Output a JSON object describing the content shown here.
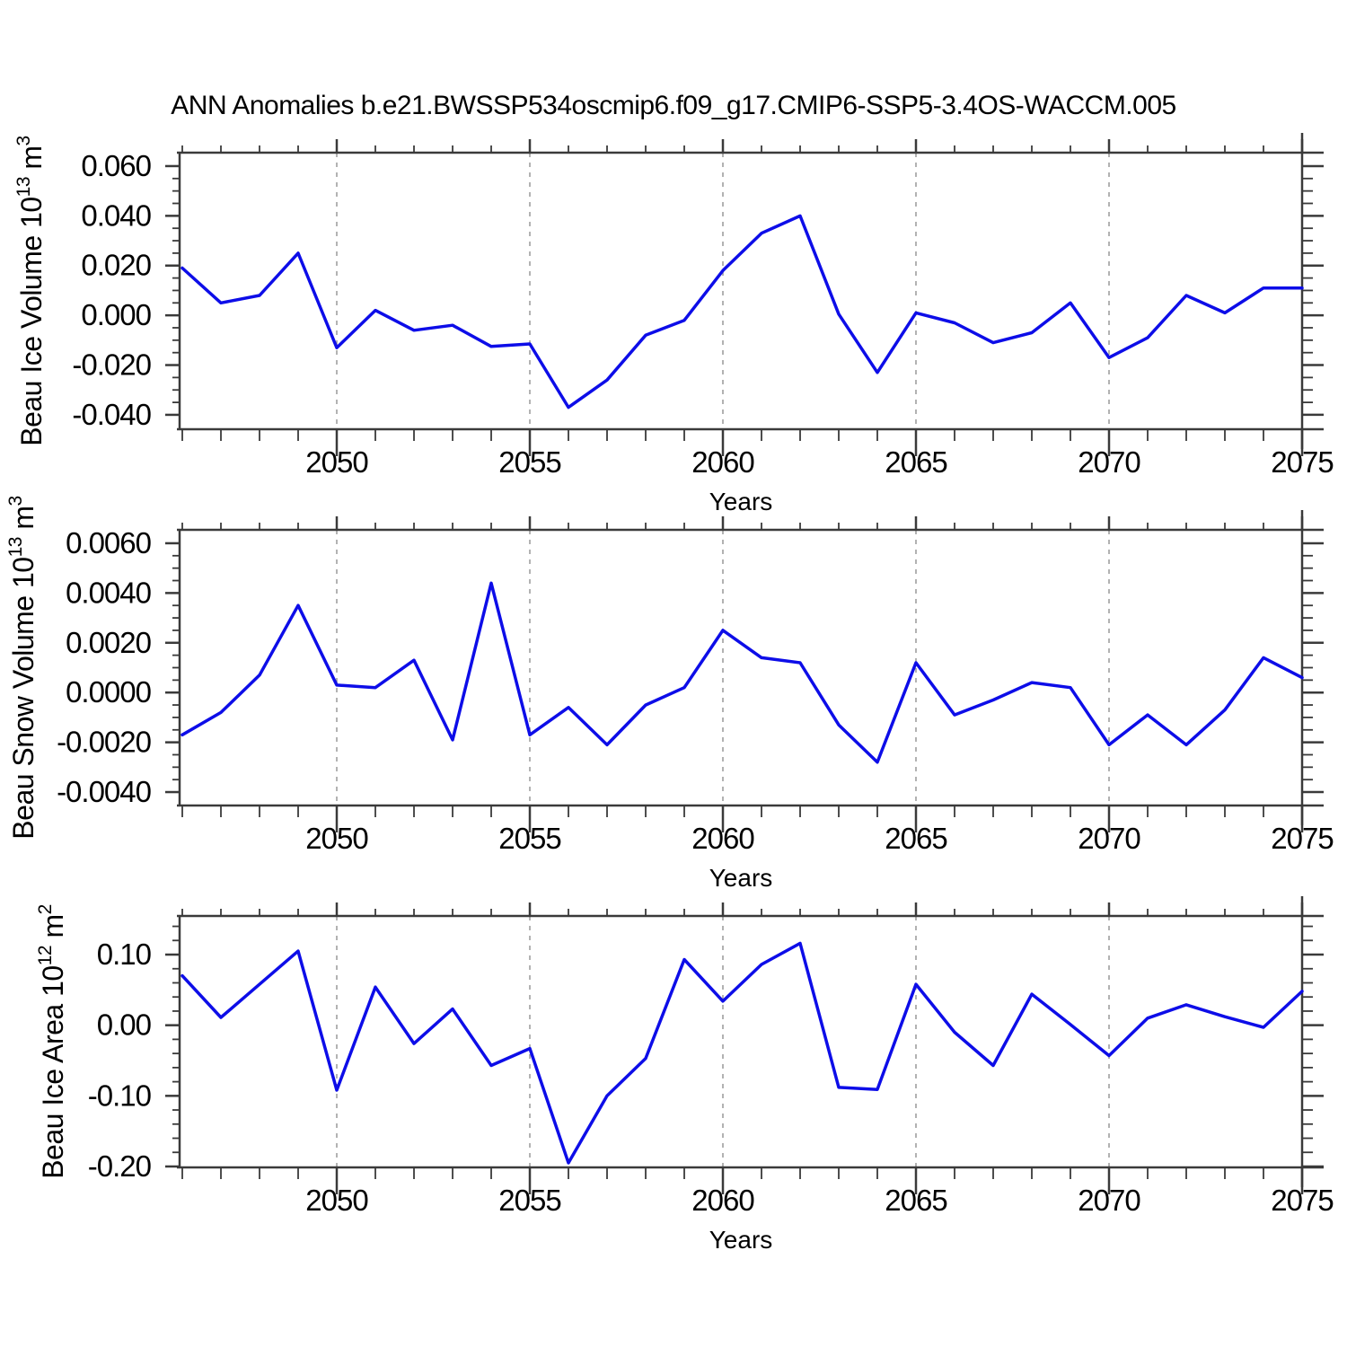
{
  "title": "ANN Anomalies b.e21.BWSSP534oscmip6.f09_g17.CMIP6-SSP5-3.4OS-WACCM.005",
  "colors": {
    "series_line": "#0D0DE8",
    "axis": "#3a3a3a",
    "grid_dashed": "#999999",
    "text": "#000000",
    "background": "#ffffff"
  },
  "chart_data": [
    {
      "type": "line",
      "panel": 1,
      "ylabel": "Beau Ice Volume 10^13 m^3",
      "xlabel": "Years",
      "x": [
        2046,
        2047,
        2048,
        2049,
        2050,
        2051,
        2052,
        2053,
        2054,
        2055,
        2056,
        2057,
        2058,
        2059,
        2060,
        2061,
        2062,
        2063,
        2064,
        2065,
        2066,
        2067,
        2068,
        2069,
        2070,
        2071,
        2072,
        2073,
        2074,
        2075
      ],
      "values": [
        0.019,
        0.005,
        0.008,
        0.025,
        -0.013,
        0.002,
        -0.006,
        -0.004,
        -0.0125,
        -0.0115,
        -0.037,
        -0.026,
        -0.008,
        -0.002,
        0.018,
        0.033,
        0.04,
        0.0005,
        -0.023,
        0.001,
        -0.003,
        -0.011,
        -0.007,
        0.005,
        -0.017,
        -0.009,
        0.008,
        0.001,
        0.011,
        0.011
      ],
      "ylim": [
        -0.0458,
        0.0654
      ],
      "yticks": [
        0.06,
        0.04,
        0.02,
        0.0,
        -0.02,
        -0.04
      ],
      "ytick_labels": [
        "0.060",
        "0.040",
        "0.020",
        "0.000",
        "-0.020",
        "-0.040"
      ],
      "y_minor_step": 0.005,
      "xlim": [
        2045.93,
        2075
      ],
      "xticks": [
        2050,
        2055,
        2060,
        2065,
        2070,
        2075
      ],
      "xtick_labels": [
        "2050",
        "2055",
        "2060",
        "2065",
        "2070",
        "2075"
      ],
      "x_minor_step": 1,
      "grid_years": [
        2050,
        2055,
        2060,
        2065,
        2070
      ],
      "grid": "vertical-dashed",
      "legend": "none"
    },
    {
      "type": "line",
      "panel": 2,
      "ylabel": "Beau Snow Volume 10^13 m^3",
      "xlabel": "Years",
      "x": [
        2046,
        2047,
        2048,
        2049,
        2050,
        2051,
        2052,
        2053,
        2054,
        2055,
        2056,
        2057,
        2058,
        2059,
        2060,
        2061,
        2062,
        2063,
        2064,
        2065,
        2066,
        2067,
        2068,
        2069,
        2070,
        2071,
        2072,
        2073,
        2074,
        2075
      ],
      "values": [
        -0.0017,
        -0.0008,
        0.0007,
        0.0035,
        0.0003,
        0.0002,
        0.0013,
        -0.0019,
        0.0044,
        -0.0017,
        -0.0006,
        -0.0021,
        -0.0005,
        0.0002,
        0.0025,
        0.0014,
        0.0012,
        -0.0013,
        -0.0028,
        0.0012,
        -0.0009,
        -0.0003,
        0.0004,
        0.0002,
        -0.0021,
        -0.0009,
        -0.0021,
        -0.0007,
        0.0014,
        0.0006
      ],
      "ylim": [
        -0.00454,
        0.00654
      ],
      "yticks": [
        0.006,
        0.004,
        0.002,
        0.0,
        -0.002,
        -0.004
      ],
      "ytick_labels": [
        "0.0060",
        "0.0040",
        "0.0020",
        "0.0000",
        "-0.0020",
        "-0.0040"
      ],
      "y_minor_step": 0.0005,
      "xlim": [
        2045.93,
        2075
      ],
      "xticks": [
        2050,
        2055,
        2060,
        2065,
        2070,
        2075
      ],
      "xtick_labels": [
        "2050",
        "2055",
        "2060",
        "2065",
        "2070",
        "2075"
      ],
      "x_minor_step": 1,
      "grid_years": [
        2050,
        2055,
        2060,
        2065,
        2070
      ],
      "grid": "vertical-dashed",
      "legend": "none"
    },
    {
      "type": "line",
      "panel": 3,
      "ylabel": "Beau Ice Area 10^12 m^2",
      "xlabel": "Years",
      "x": [
        2046,
        2047,
        2048,
        2049,
        2050,
        2051,
        2052,
        2053,
        2054,
        2055,
        2056,
        2057,
        2058,
        2059,
        2060,
        2061,
        2062,
        2063,
        2064,
        2065,
        2066,
        2067,
        2068,
        2069,
        2070,
        2071,
        2072,
        2073,
        2074,
        2075
      ],
      "values": [
        0.07,
        0.011,
        0.058,
        0.105,
        -0.092,
        0.054,
        -0.026,
        0.023,
        -0.057,
        -0.033,
        -0.195,
        -0.1,
        -0.047,
        0.093,
        0.034,
        0.086,
        0.116,
        -0.088,
        -0.091,
        0.058,
        -0.01,
        -0.057,
        0.044,
        0.001,
        -0.043,
        0.01,
        0.029,
        0.012,
        -0.003,
        0.048
      ],
      "ylim": [
        -0.2013,
        0.1547
      ],
      "yticks": [
        0.1,
        0.0,
        -0.1,
        -0.2
      ],
      "ytick_labels": [
        "0.10",
        "0.00",
        "-0.10",
        "-0.20"
      ],
      "y_minor_step": 0.02,
      "xlim": [
        2045.93,
        2075
      ],
      "xticks": [
        2050,
        2055,
        2060,
        2065,
        2070,
        2075
      ],
      "xtick_labels": [
        "2050",
        "2055",
        "2060",
        "2065",
        "2070",
        "2075"
      ],
      "x_minor_step": 1,
      "grid_years": [
        2050,
        2055,
        2060,
        2065,
        2070
      ],
      "grid": "vertical-dashed",
      "legend": "none"
    }
  ]
}
